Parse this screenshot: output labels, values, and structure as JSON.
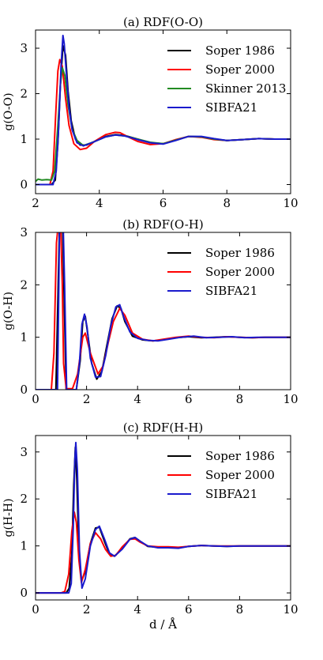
{
  "chart_data": [
    {
      "type": "line",
      "title": "(a) RDF(O-O)",
      "xlabel": "",
      "ylabel": "g(O-O)",
      "xlim": [
        2,
        10
      ],
      "ylim": [
        -0.2,
        3.4
      ],
      "xticks": [
        2,
        4,
        6,
        8,
        10
      ],
      "yticks": [
        0,
        1,
        2,
        3
      ],
      "grid": false,
      "legend": "top-right",
      "series": [
        {
          "name": "Soper 1986",
          "color": "#000000",
          "x": [
            2.0,
            2.5,
            2.62,
            2.7,
            2.78,
            2.86,
            2.94,
            3.02,
            3.12,
            3.25,
            3.4,
            3.6,
            3.85,
            4.2,
            4.5,
            4.8,
            5.2,
            5.6,
            6.0,
            6.4,
            6.8,
            7.2,
            7.6,
            8.0,
            8.5,
            9.0,
            9.5,
            10.0
          ],
          "y": [
            0.0,
            0.0,
            0.1,
            0.9,
            2.2,
            3.05,
            2.85,
            2.05,
            1.4,
            1.0,
            0.87,
            0.87,
            0.95,
            1.06,
            1.1,
            1.08,
            1.0,
            0.92,
            0.9,
            0.98,
            1.06,
            1.05,
            1.0,
            0.97,
            0.99,
            1.01,
            1.0,
            1.0
          ]
        },
        {
          "name": "Soper 2000",
          "color": "#ff0000",
          "x": [
            2.0,
            2.45,
            2.55,
            2.63,
            2.7,
            2.76,
            2.84,
            2.94,
            3.05,
            3.2,
            3.4,
            3.6,
            3.85,
            4.2,
            4.5,
            4.65,
            4.9,
            5.2,
            5.6,
            6.0,
            6.4,
            6.8,
            7.2,
            7.6,
            8.0,
            8.5,
            9.0,
            9.5,
            10.0
          ],
          "y": [
            0.0,
            0.0,
            0.3,
            1.5,
            2.5,
            2.75,
            2.6,
            1.9,
            1.3,
            0.9,
            0.77,
            0.8,
            0.95,
            1.1,
            1.15,
            1.14,
            1.05,
            0.95,
            0.88,
            0.9,
            0.99,
            1.06,
            1.04,
            0.99,
            0.97,
            0.99,
            1.01,
            1.0,
            1.0
          ]
        },
        {
          "name": "Skinner 2013",
          "color": "#228b22",
          "x": [
            2.0,
            2.08,
            2.2,
            2.35,
            2.5,
            2.6,
            2.7,
            2.78,
            2.84,
            2.92,
            3.02,
            3.15,
            3.3,
            3.5,
            3.8,
            4.2,
            4.5,
            4.8,
            5.2,
            5.6,
            6.0,
            6.4,
            6.8,
            7.2,
            7.6,
            8.0,
            8.5,
            9.0,
            9.5,
            10.0
          ],
          "y": [
            0.07,
            0.12,
            0.1,
            0.11,
            0.1,
            0.3,
            1.3,
            2.2,
            2.57,
            2.4,
            1.75,
            1.22,
            0.97,
            0.86,
            0.93,
            1.05,
            1.09,
            1.07,
            1.0,
            0.93,
            0.9,
            0.98,
            1.06,
            1.05,
            1.0,
            0.97,
            0.99,
            1.01,
            1.0,
            1.0
          ]
        },
        {
          "name": "SIBFA21",
          "color": "#1a1acd",
          "x": [
            2.0,
            2.55,
            2.65,
            2.72,
            2.8,
            2.86,
            2.9,
            2.96,
            3.05,
            3.15,
            3.3,
            3.5,
            3.8,
            4.2,
            4.5,
            4.8,
            5.2,
            5.6,
            6.0,
            6.4,
            6.8,
            7.2,
            7.6,
            8.0,
            8.5,
            9.0,
            9.5,
            10.0
          ],
          "y": [
            0.0,
            0.0,
            0.3,
            1.2,
            2.6,
            3.28,
            3.1,
            2.5,
            1.7,
            1.2,
            0.92,
            0.85,
            0.93,
            1.05,
            1.09,
            1.07,
            0.99,
            0.92,
            0.89,
            0.97,
            1.06,
            1.06,
            1.01,
            0.97,
            0.99,
            1.01,
            1.0,
            1.0
          ]
        }
      ]
    },
    {
      "type": "line",
      "title": "(b) RDF(O-H)",
      "xlabel": "",
      "ylabel": "g(O-H)",
      "xlim": [
        0,
        10
      ],
      "ylim": [
        0,
        3
      ],
      "xticks": [
        0,
        2,
        4,
        6,
        8,
        10
      ],
      "yticks": [
        0,
        1,
        2,
        3
      ],
      "grid": false,
      "legend": "top-right",
      "series": [
        {
          "name": "Soper 1986",
          "color": "#000000",
          "x": [
            0.0,
            0.8,
            0.88,
            0.94,
            1.0,
            1.06,
            1.12,
            1.2,
            1.6,
            1.75,
            1.85,
            1.95,
            2.05,
            2.2,
            2.4,
            2.6,
            2.8,
            3.0,
            3.2,
            3.35,
            3.5,
            3.8,
            4.2,
            4.6,
            5.0,
            5.5,
            6.0,
            6.5,
            7.0,
            7.5,
            8.0,
            8.5,
            9.0,
            9.5,
            10.0
          ],
          "y": [
            0.0,
            0.0,
            1.8,
            3.2,
            3.2,
            3.2,
            1.8,
            0.0,
            0.0,
            0.55,
            1.3,
            1.4,
            1.05,
            0.5,
            0.2,
            0.35,
            0.85,
            1.35,
            1.6,
            1.55,
            1.3,
            1.02,
            0.95,
            0.93,
            0.95,
            0.99,
            1.01,
            0.99,
            1.0,
            1.01,
            1.0,
            0.99,
            1.0,
            1.0,
            1.0
          ]
        },
        {
          "name": "Soper 2000",
          "color": "#ff0000",
          "x": [
            0.0,
            0.62,
            0.72,
            0.82,
            0.9,
            0.98,
            1.05,
            1.1,
            1.2,
            1.45,
            1.65,
            1.85,
            1.95,
            2.15,
            2.45,
            2.65,
            2.85,
            3.05,
            3.3,
            3.5,
            3.8,
            4.2,
            4.6,
            5.0,
            5.5,
            6.0,
            6.5,
            7.0,
            7.5,
            8.0,
            8.5,
            9.0,
            9.5,
            10.0
          ],
          "y": [
            0.0,
            0.0,
            0.7,
            2.8,
            3.2,
            3.2,
            2.0,
            0.5,
            0.02,
            0.02,
            0.3,
            1.0,
            1.08,
            0.7,
            0.3,
            0.45,
            0.9,
            1.3,
            1.55,
            1.42,
            1.08,
            0.96,
            0.93,
            0.96,
            1.0,
            1.02,
            1.0,
            0.99,
            1.01,
            1.0,
            0.99,
            1.0,
            1.0,
            1.0
          ]
        },
        {
          "name": "SIBFA21",
          "color": "#1a1acd",
          "x": [
            0.0,
            0.86,
            0.9,
            0.94,
            1.0,
            1.08,
            1.14,
            1.22,
            1.6,
            1.72,
            1.82,
            1.92,
            2.02,
            2.15,
            2.35,
            2.55,
            2.75,
            2.95,
            3.15,
            3.3,
            3.45,
            3.7,
            4.0,
            4.4,
            4.8,
            5.2,
            5.7,
            6.2,
            6.7,
            7.2,
            7.7,
            8.2,
            8.7,
            9.2,
            9.7,
            10.0
          ],
          "y": [
            0.0,
            0.0,
            1.5,
            3.2,
            3.2,
            3.2,
            2.0,
            0.0,
            0.0,
            0.5,
            1.25,
            1.44,
            1.2,
            0.6,
            0.24,
            0.25,
            0.65,
            1.22,
            1.58,
            1.62,
            1.4,
            1.1,
            0.98,
            0.94,
            0.93,
            0.96,
            1.0,
            1.02,
            0.99,
            1.0,
            1.01,
            0.99,
            1.0,
            1.0,
            1.0,
            1.0
          ]
        }
      ]
    },
    {
      "type": "line",
      "title": "(c) RDF(H-H)",
      "xlabel": "d / Å",
      "ylabel": "g(H-H)",
      "xlim": [
        0,
        10
      ],
      "ylim": [
        -0.15,
        3.35
      ],
      "xticks": [
        0,
        2,
        4,
        6,
        8,
        10
      ],
      "yticks": [
        0,
        1,
        2,
        3
      ],
      "grid": false,
      "legend": "top-right",
      "series": [
        {
          "name": "Soper 1986",
          "color": "#000000",
          "x": [
            0.0,
            1.2,
            1.32,
            1.42,
            1.5,
            1.56,
            1.62,
            1.7,
            1.8,
            1.95,
            2.15,
            2.35,
            2.5,
            2.7,
            2.9,
            3.1,
            3.4,
            3.7,
            3.9,
            4.1,
            4.4,
            4.8,
            5.2,
            5.6,
            6.0,
            6.5,
            7.0,
            7.5,
            8.0,
            8.5,
            9.0,
            9.5,
            10.0
          ],
          "y": [
            0.0,
            0.0,
            0.1,
            0.8,
            2.3,
            3.1,
            2.4,
            0.9,
            0.25,
            0.45,
            1.05,
            1.38,
            1.4,
            1.1,
            0.82,
            0.78,
            0.95,
            1.15,
            1.18,
            1.1,
            0.99,
            0.97,
            0.97,
            0.96,
            0.99,
            1.01,
            1.0,
            0.99,
            1.0,
            1.0,
            1.0,
            1.0,
            1.0
          ]
        },
        {
          "name": "Soper 2000",
          "color": "#ff0000",
          "x": [
            0.0,
            1.0,
            1.15,
            1.3,
            1.42,
            1.52,
            1.6,
            1.7,
            1.8,
            1.95,
            2.15,
            2.35,
            2.55,
            2.75,
            2.95,
            3.15,
            3.4,
            3.7,
            3.9,
            4.1,
            4.4,
            4.8,
            5.2,
            5.6,
            6.0,
            6.5,
            7.0,
            7.5,
            8.0,
            8.5,
            9.0,
            9.5,
            10.0
          ],
          "y": [
            0.0,
            0.0,
            0.03,
            0.4,
            1.3,
            1.72,
            1.5,
            0.7,
            0.22,
            0.5,
            1.05,
            1.28,
            1.15,
            0.92,
            0.78,
            0.8,
            0.98,
            1.14,
            1.15,
            1.08,
            1.0,
            0.98,
            0.98,
            0.97,
            0.99,
            1.01,
            1.0,
            1.0,
            1.0,
            1.0,
            1.0,
            1.0,
            1.0
          ]
        },
        {
          "name": "SIBFA21",
          "color": "#1a1acd",
          "x": [
            0.0,
            1.3,
            1.4,
            1.48,
            1.54,
            1.58,
            1.64,
            1.72,
            1.82,
            1.95,
            2.15,
            2.35,
            2.5,
            2.7,
            2.9,
            3.1,
            3.4,
            3.7,
            3.9,
            4.1,
            4.4,
            4.8,
            5.2,
            5.6,
            6.0,
            6.5,
            7.0,
            7.5,
            8.0,
            8.5,
            9.0,
            9.5,
            10.0
          ],
          "y": [
            0.0,
            0.0,
            0.2,
            1.4,
            2.8,
            3.2,
            2.6,
            0.9,
            0.1,
            0.3,
            1.0,
            1.35,
            1.42,
            1.15,
            0.85,
            0.78,
            0.93,
            1.14,
            1.18,
            1.1,
            1.0,
            0.96,
            0.96,
            0.95,
            0.99,
            1.01,
            1.0,
            0.99,
            1.0,
            1.0,
            1.0,
            1.0,
            1.0
          ]
        }
      ]
    }
  ]
}
